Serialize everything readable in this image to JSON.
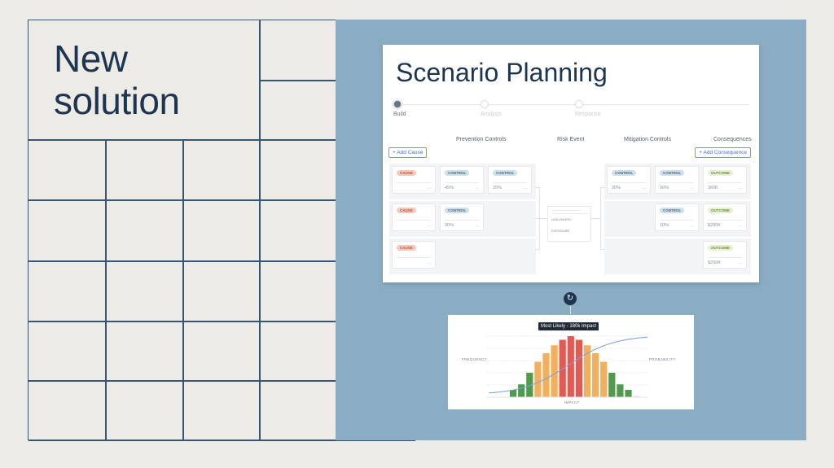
{
  "hero": {
    "line1": "New",
    "line2": "solution"
  },
  "card": {
    "title": "Scenario Planning",
    "steps": [
      {
        "label": "Build",
        "active": true
      },
      {
        "label": "Analysis",
        "active": false
      },
      {
        "label": "Response",
        "active": false
      }
    ],
    "columns": {
      "prevention": "Prevention Controls",
      "risk": "Risk Event",
      "mitigation": "Mitigation Controls",
      "consequences": "Consequences"
    },
    "add_cause": "+ Add Cause",
    "add_consequence": "+ Add Consequence",
    "rows": [
      {
        "cause": "CAUSE",
        "prevention": [
          {
            "tag": "CONTROL",
            "value": "45%"
          },
          {
            "tag": "CONTROL",
            "value": "25%"
          }
        ],
        "mitigation": [
          {
            "tag": "CONTROL",
            "value": "20%"
          },
          {
            "tag": "CONTROL",
            "value": "30%"
          }
        ],
        "outcome": {
          "tag": "OUTCOME",
          "value": "360K"
        }
      },
      {
        "cause": "CAUSE",
        "prevention": [
          {
            "tag": "CONTROL",
            "value": "30%"
          }
        ],
        "mitigation": [
          {
            "tag": "CONTROL",
            "value": "10%"
          }
        ],
        "outcome": {
          "tag": "OUTCOME",
          "value": "$200K"
        }
      },
      {
        "cause": "CAUSE",
        "prevention": [],
        "mitigation": [],
        "outcome": {
          "tag": "OUTCOME",
          "value": "$250K"
        }
      }
    ],
    "risk_event": {
      "likelihood": "LIKELIHOOD",
      "exposure": "EXPOSURE"
    },
    "more": "..."
  },
  "chart_data": {
    "type": "bar",
    "title": "",
    "tooltip": "Most Likely - 180k Impact",
    "xlabel": "IMPACT",
    "ylabel": "FREQUENCY",
    "y2label": "PROBABILITY",
    "values": [
      12,
      21,
      40,
      58,
      72,
      85,
      94,
      100,
      94,
      85,
      72,
      58,
      40,
      21,
      12,
      2
    ],
    "bar_colors": [
      "#4f9a4c",
      "#4f9a4c",
      "#4f9a4c",
      "#f3b05c",
      "#f3b05c",
      "#f3b05c",
      "#e45a52",
      "#e45a52",
      "#e45a52",
      "#f3b05c",
      "#f3b05c",
      "#f3b05c",
      "#4f9a4c",
      "#4f9a4c",
      "#4f9a4c",
      "#d6e4f2"
    ],
    "cumulative_line_color": "#7d9be6",
    "grid": true
  },
  "colors": {
    "panel_blue": "#8aadc4",
    "navy": "#1d3550",
    "background": "#ecebe6"
  }
}
